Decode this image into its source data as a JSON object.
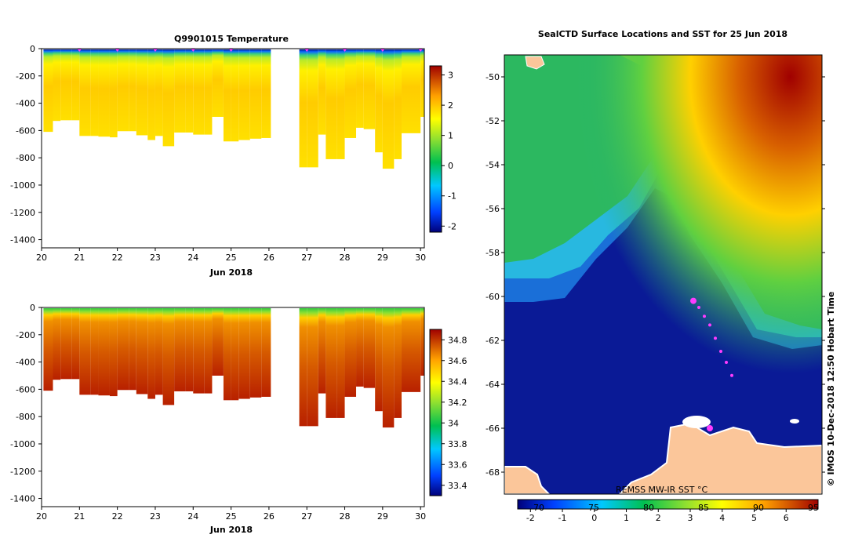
{
  "chart_data": [
    {
      "type": "heatmap",
      "title": "Q9901015  Temperature",
      "xlabel": "Jun 2018",
      "ylabel": "",
      "x_ticks": [
        "20",
        "21",
        "22",
        "23",
        "24",
        "25",
        "26",
        "27",
        "28",
        "29",
        "30"
      ],
      "y_ticks": [
        "0",
        "-200",
        "-400",
        "-600",
        "-800",
        "-1000",
        "-1200",
        "-1400"
      ],
      "xlim": [
        20,
        30.1
      ],
      "ylim": [
        -1460,
        0
      ],
      "colorbar_ticks": [
        "3",
        "2",
        "1",
        "0",
        "-1",
        "-2"
      ],
      "colorbar_range": [
        -2.2,
        3.3
      ],
      "profile_days": [
        20.05,
        20.3,
        20.5,
        20.8,
        21.0,
        21.3,
        21.5,
        21.8,
        22.0,
        22.3,
        22.5,
        22.8,
        23.0,
        23.2,
        23.5,
        23.8,
        24.0,
        24.3,
        24.5,
        24.8,
        25.0,
        25.2,
        25.5,
        25.8,
        26.8,
        27.0,
        27.3,
        27.5,
        27.8,
        28.0,
        28.3,
        28.5,
        28.8,
        29.0,
        29.3,
        29.5,
        29.8,
        30.0
      ],
      "profile_max_depth": [
        -610,
        -530,
        -525,
        -525,
        -640,
        -640,
        -645,
        -650,
        -605,
        -605,
        -635,
        -670,
        -640,
        -715,
        -615,
        -615,
        -630,
        -630,
        -500,
        -680,
        -680,
        -670,
        -660,
        -655,
        -870,
        -870,
        -630,
        -810,
        -810,
        -655,
        -580,
        -590,
        -760,
        -880,
        -810,
        -620,
        -620,
        -500
      ],
      "surface_markers_days": [
        21.0,
        22.0,
        23.0,
        24.0,
        25.0,
        27.0,
        28.0,
        29.0,
        30.0
      ]
    },
    {
      "type": "heatmap",
      "title": "",
      "xlabel": "Jun 2018",
      "ylabel": "",
      "x_ticks": [
        "20",
        "21",
        "22",
        "23",
        "24",
        "25",
        "26",
        "27",
        "28",
        "29",
        "30"
      ],
      "y_ticks": [
        "0",
        "-200",
        "-400",
        "-600",
        "-800",
        "-1000",
        "-1200",
        "-1400"
      ],
      "xlim": [
        20,
        30.1
      ],
      "ylim": [
        -1460,
        0
      ],
      "colorbar_ticks": [
        "34.8",
        "34.6",
        "34.4",
        "34.2",
        "34",
        "33.8",
        "33.6",
        "33.4"
      ],
      "colorbar_range": [
        33.3,
        34.9
      ]
    },
    {
      "type": "heatmap",
      "title": "SealCTD Surface Locations and SST for 25 Jun 2018",
      "y_ticks": [
        "-50",
        "-52",
        "-54",
        "-56",
        "-58",
        "-60",
        "-62",
        "-64",
        "-66",
        "-68"
      ],
      "ylim": [
        -69,
        -49
      ],
      "colorbar_ticks_top": [
        "70",
        "75",
        "80",
        "85",
        "90",
        "95"
      ],
      "colorbar_ticks_bottom": [
        "-2",
        "-1",
        "0",
        "1",
        "2",
        "3",
        "4",
        "5",
        "6"
      ],
      "colorbar_range": [
        -2.4,
        7
      ],
      "overlay_label": "REMSS MW-IR SST °C",
      "side_caption": "©  IMOS 10-Dec-2018 12:50 Hobart Time",
      "track_points_lat": [
        -60.2,
        -60.5,
        -60.9,
        -61.3,
        -61.9,
        -62.5,
        -63.0,
        -63.6,
        -66.0
      ]
    }
  ],
  "colors": {
    "sst_background": "#0a1a96",
    "land": "#fbc69a",
    "ice": "#ffffff",
    "track": "#ff3cff"
  }
}
